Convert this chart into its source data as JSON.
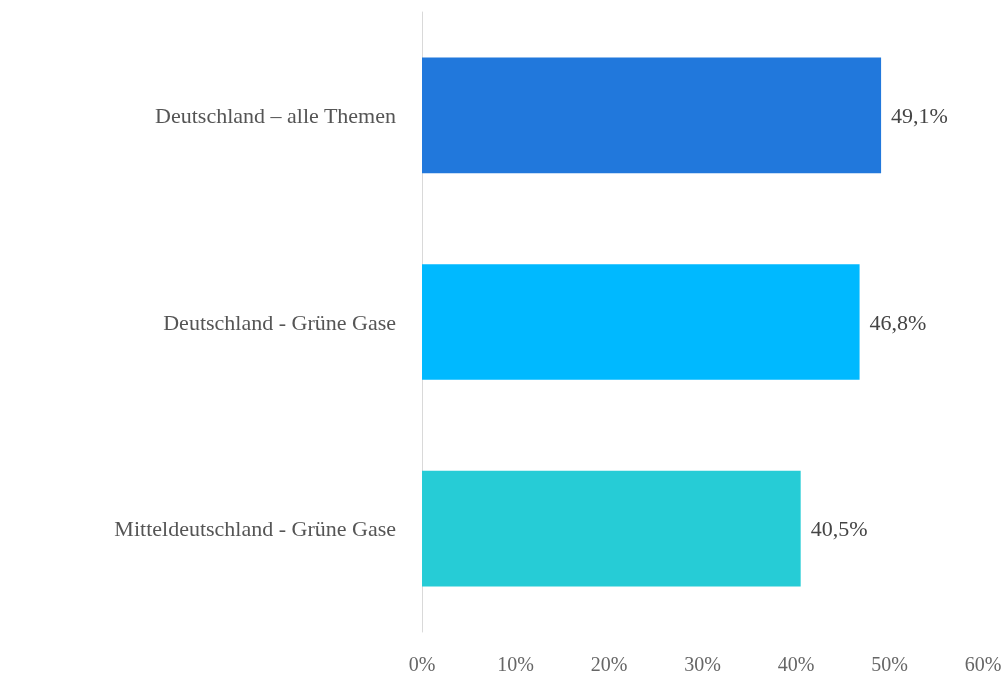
{
  "chart_data": {
    "type": "bar",
    "orientation": "horizontal",
    "categories": [
      "Deutschland – alle Themen",
      "Deutschland - Grüne Gase",
      "Mitteldeutschland - Grüne Gase"
    ],
    "values": [
      49.1,
      46.8,
      40.5
    ],
    "colors": [
      "#2178dc",
      "#00b9ff",
      "#26ccd6"
    ],
    "value_labels": [
      "49,1%",
      "46,8%",
      "40,5%"
    ],
    "xlim": [
      0,
      60
    ],
    "xticks": [
      {
        "value": 0,
        "label": "0%"
      },
      {
        "value": 10,
        "label": "10%"
      },
      {
        "value": 20,
        "label": "20%"
      },
      {
        "value": 30,
        "label": "30%"
      },
      {
        "value": 40,
        "label": "40%"
      },
      {
        "value": 50,
        "label": "50%"
      },
      {
        "value": 60,
        "label": "60%"
      }
    ],
    "grid": false
  }
}
